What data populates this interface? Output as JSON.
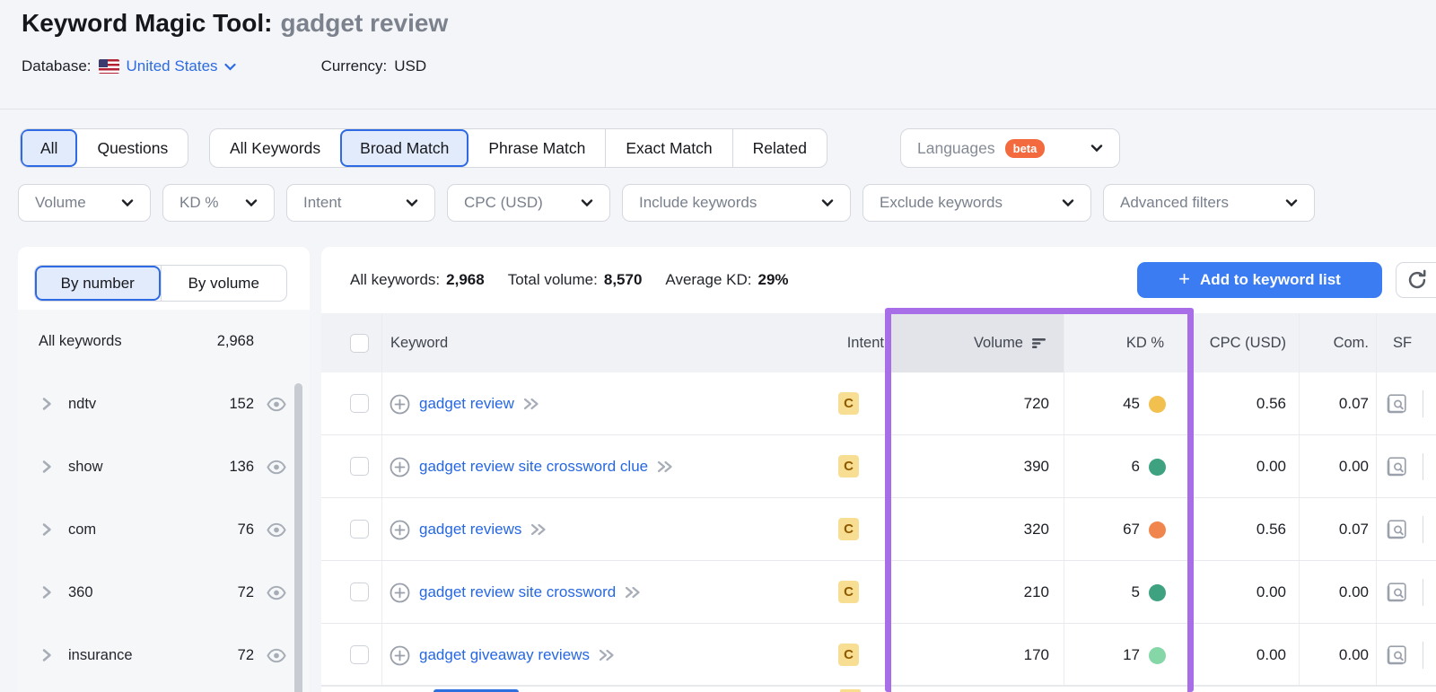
{
  "colors": {
    "accent_blue": "#3b7cf3",
    "link_blue": "#2667e2",
    "highlight_purple": "#a76ee8",
    "beta_orange": "#f26a3e",
    "intent_badge_bg": "#f7de92"
  },
  "header": {
    "title": "Keyword Magic Tool:",
    "query": "gadget review",
    "database_label": "Database:",
    "database_value": "United States",
    "flag": "us-flag",
    "currency_label": "Currency:",
    "currency_value": "USD"
  },
  "tabs": {
    "group1": [
      {
        "label": "All",
        "selected": true
      },
      {
        "label": "Questions",
        "selected": false
      }
    ],
    "group2": [
      {
        "label": "All Keywords",
        "selected": false
      },
      {
        "label": "Broad Match",
        "selected": true
      },
      {
        "label": "Phrase Match",
        "selected": false
      },
      {
        "label": "Exact Match",
        "selected": false
      },
      {
        "label": "Related",
        "selected": false
      }
    ],
    "languages": {
      "label": "Languages",
      "badge": "beta"
    }
  },
  "filters": [
    "Volume",
    "KD %",
    "Intent",
    "CPC (USD)",
    "Include keywords",
    "Exclude keywords",
    "Advanced filters"
  ],
  "filter_widths": [
    148,
    125,
    166,
    182,
    255,
    255,
    236
  ],
  "sidebar": {
    "toggle": [
      {
        "label": "By number",
        "selected": true
      },
      {
        "label": "By volume",
        "selected": false
      }
    ],
    "all_row": {
      "label": "All keywords",
      "count": "2,968"
    },
    "groups": [
      {
        "label": "ndtv",
        "count": "152"
      },
      {
        "label": "show",
        "count": "136"
      },
      {
        "label": "com",
        "count": "76"
      },
      {
        "label": "360",
        "count": "72"
      },
      {
        "label": "insurance",
        "count": "72"
      }
    ]
  },
  "summary": {
    "all_keywords_label": "All keywords:",
    "all_keywords_value": "2,968",
    "total_volume_label": "Total volume:",
    "total_volume_value": "8,570",
    "avg_kd_label": "Average KD:",
    "avg_kd_value": "29%",
    "add_button_label": "Add to keyword list"
  },
  "table": {
    "columns": {
      "keyword": "Keyword",
      "intent": "Intent",
      "volume": "Volume",
      "kd": "KD %",
      "cpc": "CPC (USD)",
      "com": "Com.",
      "sf": "SF"
    },
    "rows": [
      {
        "keyword": "gadget review",
        "intent": "C",
        "volume": "720",
        "kd": "45",
        "kd_color": "#f1c04f",
        "cpc": "0.56",
        "com": "0.07"
      },
      {
        "keyword": "gadget review site crossword clue",
        "intent": "C",
        "volume": "390",
        "kd": "6",
        "kd_color": "#3ea17f",
        "cpc": "0.00",
        "com": "0.00"
      },
      {
        "keyword": "gadget reviews",
        "intent": "C",
        "volume": "320",
        "kd": "67",
        "kd_color": "#f0854e",
        "cpc": "0.56",
        "com": "0.07"
      },
      {
        "keyword": "gadget review site crossword",
        "intent": "C",
        "volume": "210",
        "kd": "5",
        "kd_color": "#3ea17f",
        "cpc": "0.00",
        "com": "0.00"
      },
      {
        "keyword": "gadget giveaway reviews",
        "intent": "C",
        "volume": "170",
        "kd": "17",
        "kd_color": "#85d7a7",
        "cpc": "0.00",
        "com": "0.00"
      }
    ]
  }
}
